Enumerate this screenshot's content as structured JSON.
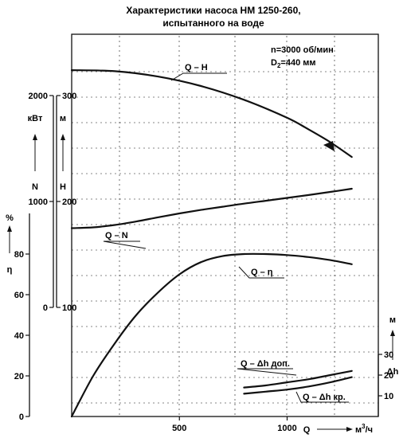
{
  "chart_data": {
    "type": "line",
    "title": [
      "Характеристики насоса НМ 1250-260,",
      "испытанного на воде"
    ],
    "params": {
      "speed": "n=3000 об/мин",
      "impeller_prefix": "D",
      "impeller_sub": "2",
      "impeller_suffix": "=440 мм"
    },
    "x_axis": {
      "label": "Q",
      "unit_base": "м",
      "unit_sup": "3",
      "unit_tail": "/ч",
      "ticks": [
        500,
        1000
      ],
      "range": [
        0,
        1350
      ]
    },
    "axes": {
      "eta": {
        "unit": "%",
        "name": "η",
        "ticks": [
          0,
          20,
          40,
          60,
          80
        ],
        "range": [
          0,
          100
        ]
      },
      "N": {
        "unit": "кВт",
        "name": "N",
        "ticks": [
          0,
          1000,
          2000
        ],
        "range": [
          0,
          2000
        ]
      },
      "H": {
        "unit": "м",
        "name": "H",
        "ticks": [
          100,
          200,
          300
        ],
        "range": [
          100,
          300
        ]
      },
      "dh": {
        "unit": "м",
        "name": "Δh",
        "ticks": [
          10,
          20,
          30
        ],
        "range": [
          0,
          30
        ]
      }
    },
    "series": [
      {
        "name": "Q – H",
        "axis": "H",
        "x": [
          0,
          200,
          400,
          600,
          800,
          1000,
          1100,
          1200,
          1300
        ],
        "y": [
          324,
          323,
          318,
          309,
          296,
          279,
          268,
          256,
          242
        ]
      },
      {
        "name": "Q – N",
        "axis": "N",
        "x": [
          0,
          100,
          200,
          300,
          400,
          500,
          600,
          700,
          800,
          900,
          1000,
          1100,
          1200,
          1300
        ],
        "y": [
          748,
          756,
          778,
          811,
          850,
          887,
          920,
          950,
          980,
          1007,
          1034,
          1061,
          1090,
          1120
        ]
      },
      {
        "name": "Q – η",
        "axis": "eta",
        "x": [
          0,
          100,
          200,
          300,
          400,
          500,
          600,
          700,
          800,
          900,
          1000,
          1100,
          1200,
          1300
        ],
        "y": [
          0,
          20,
          36,
          50,
          61,
          70,
          76,
          79,
          80,
          80,
          79.5,
          78.5,
          77,
          75
        ]
      },
      {
        "name": "Q – Δh доп.",
        "axis": "dh",
        "x": [
          800,
          900,
          1000,
          1100,
          1200,
          1300
        ],
        "y": [
          14,
          15,
          16.5,
          18,
          20,
          22
        ]
      },
      {
        "name": "Q – Δh кр.",
        "axis": "dh",
        "x": [
          800,
          900,
          1000,
          1100,
          1200,
          1300
        ],
        "y": [
          11,
          12,
          13,
          14.5,
          16.5,
          19
        ]
      }
    ]
  }
}
